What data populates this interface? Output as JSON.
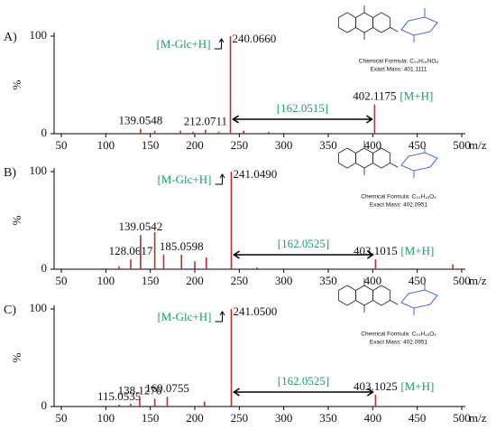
{
  "chart_data": [
    {
      "type": "bar",
      "panel": "A)",
      "ylabel": "%",
      "xlabel": "m/z",
      "xlim": [
        50,
        500
      ],
      "xticks": [
        50,
        100,
        150,
        200,
        250,
        300,
        350,
        400,
        450,
        500
      ],
      "ylim": [
        0,
        100
      ],
      "yticks": [
        0,
        100
      ],
      "series": [
        {
          "color": "#b5332a",
          "x": [
            139.0548,
            155,
            184,
            198,
            212.0711,
            227,
            240.066,
            255,
            283,
            402.1175
          ],
          "values": [
            5,
            3,
            3,
            2,
            4,
            2,
            100,
            3,
            2,
            30
          ],
          "x_labels": [
            "139.0548",
            null,
            null,
            null,
            "212.0711",
            null,
            "240.0660",
            null,
            null,
            "402.1175"
          ]
        }
      ],
      "annotations": {
        "fragment": "[M-Glc+H]",
        "molecular": "[M+H]",
        "mass_difference": "[162.0515]",
        "color": "#1a9c6a"
      },
      "compound": {
        "formula": "Chemical Formula: C₂₀H₁₉NO₈",
        "mass": "Exact Mass: 401.1111"
      }
    },
    {
      "type": "bar",
      "panel": "B)",
      "ylabel": "%",
      "xlabel": "m/z",
      "xlim": [
        50,
        500
      ],
      "xticks": [
        50,
        100,
        150,
        200,
        250,
        300,
        350,
        400,
        450,
        500
      ],
      "ylim": [
        0,
        100
      ],
      "yticks": [
        0,
        100
      ],
      "series": [
        {
          "color": "#b5332a",
          "x": [
            115,
            128.0617,
            139.0542,
            155,
            165,
            185.0598,
            200,
            213,
            241.049,
            270,
            403.1015,
            490
          ],
          "values": [
            3,
            10,
            35,
            38,
            15,
            15,
            8,
            12,
            100,
            2,
            10,
            5
          ],
          "x_labels": [
            null,
            "128.0617",
            "139.0542",
            null,
            null,
            "185.0598",
            null,
            null,
            "241.0490",
            null,
            "403.1015",
            null
          ]
        }
      ],
      "annotations": {
        "fragment": "[M-Glc+H]",
        "molecular": "[M+H]",
        "mass_difference": "[162.0525]",
        "color": "#1a9c6a"
      },
      "compound": {
        "formula": "Chemical Formula: C₂₀H₁₈O₉",
        "mass": "Exact Mass: 402.0951"
      }
    },
    {
      "type": "bar",
      "panel": "C)",
      "ylabel": "%",
      "xlabel": "m/z",
      "xlim": [
        50,
        500
      ],
      "xticks": [
        50,
        100,
        150,
        200,
        250,
        300,
        350,
        400,
        450,
        500
      ],
      "ylim": [
        0,
        100
      ],
      "yticks": [
        0,
        100
      ],
      "series": [
        {
          "color": "#b5332a",
          "x": [
            115.0535,
            128,
            138.1276,
            155,
            169.0755,
            211,
            241.05,
            403.1025
          ],
          "values": [
            2,
            3,
            8,
            8,
            10,
            5,
            100,
            12
          ],
          "x_labels": [
            "115.0535",
            null,
            "138.1276",
            null,
            "169.0755",
            null,
            "241.0500",
            "403.1025"
          ]
        }
      ],
      "annotations": {
        "fragment": "[M-Glc+H]",
        "molecular": "[M+H]",
        "mass_difference": "[162.0525]",
        "color": "#1a9c6a"
      },
      "compound": {
        "formula": "Chemical Formula: C₂₀H₁₈O₉",
        "mass": "Exact Mass: 402.0951"
      }
    }
  ]
}
